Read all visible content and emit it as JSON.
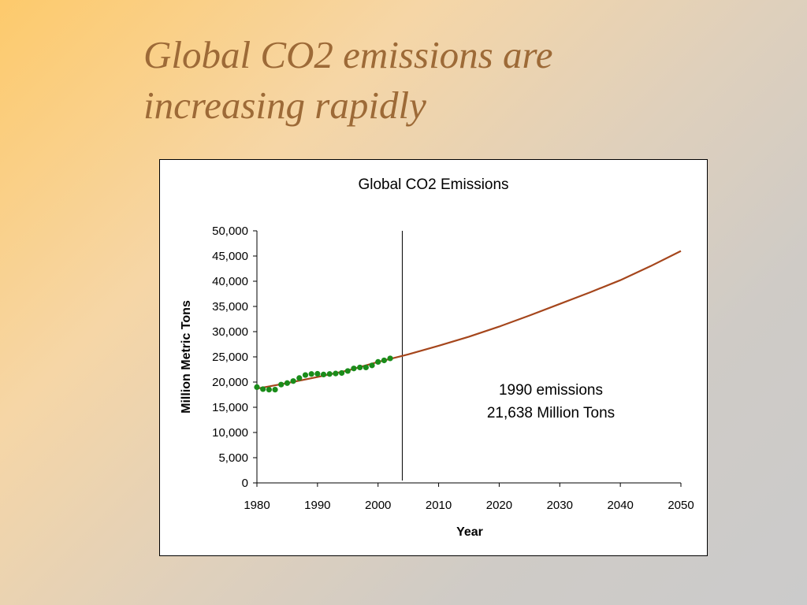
{
  "slide": {
    "title_line1": "Global CO2 emissions are",
    "title_line2": "increasing rapidly"
  },
  "chart_data": {
    "type": "line",
    "title": "Global CO2 Emissions",
    "xlabel": "Year",
    "ylabel": "Million Metric Tons",
    "xlim": [
      1980,
      2050
    ],
    "ylim": [
      0,
      50000
    ],
    "x_ticks": [
      1980,
      1990,
      2000,
      2010,
      2020,
      2030,
      2040,
      2050
    ],
    "x_tick_labels": [
      "1980",
      "1990",
      "2000",
      "2010",
      "2020",
      "2030",
      "2040",
      "2050"
    ],
    "y_ticks": [
      0,
      5000,
      10000,
      15000,
      20000,
      25000,
      30000,
      35000,
      40000,
      45000,
      50000
    ],
    "y_tick_labels": [
      "0",
      "5,000",
      "10,000",
      "15,000",
      "20,000",
      "25,000",
      "30,000",
      "35,000",
      "40,000",
      "45,000",
      "50,000"
    ],
    "grid": false,
    "legend": "none",
    "divider_year": 2004,
    "series": [
      {
        "kind": "observed-points",
        "color": "#1a8c1a",
        "points": [
          [
            1980,
            19000
          ],
          [
            1981,
            18600
          ],
          [
            1982,
            18500
          ],
          [
            1983,
            18500
          ],
          [
            1984,
            19500
          ],
          [
            1985,
            19800
          ],
          [
            1986,
            20200
          ],
          [
            1987,
            20800
          ],
          [
            1988,
            21400
          ],
          [
            1989,
            21600
          ],
          [
            1990,
            21638
          ],
          [
            1991,
            21500
          ],
          [
            1992,
            21600
          ],
          [
            1993,
            21700
          ],
          [
            1994,
            21800
          ],
          [
            1995,
            22200
          ],
          [
            1996,
            22700
          ],
          [
            1997,
            22900
          ],
          [
            1998,
            22900
          ],
          [
            1999,
            23300
          ],
          [
            2000,
            24000
          ],
          [
            2001,
            24300
          ],
          [
            2002,
            24700
          ]
        ]
      },
      {
        "kind": "trend-line",
        "color": "#a5461c",
        "points": [
          [
            1980,
            18700
          ],
          [
            1985,
            19800
          ],
          [
            1990,
            21000
          ],
          [
            1995,
            22300
          ],
          [
            2000,
            24000
          ],
          [
            2005,
            25500
          ],
          [
            2010,
            27200
          ],
          [
            2015,
            29000
          ],
          [
            2020,
            31000
          ],
          [
            2025,
            33200
          ],
          [
            2030,
            35500
          ],
          [
            2035,
            37800
          ],
          [
            2040,
            40200
          ],
          [
            2045,
            43000
          ],
          [
            2050,
            46000
          ]
        ]
      }
    ],
    "annotation": {
      "line1": "1990 emissions",
      "line2": "21,638 Million Tons"
    }
  }
}
